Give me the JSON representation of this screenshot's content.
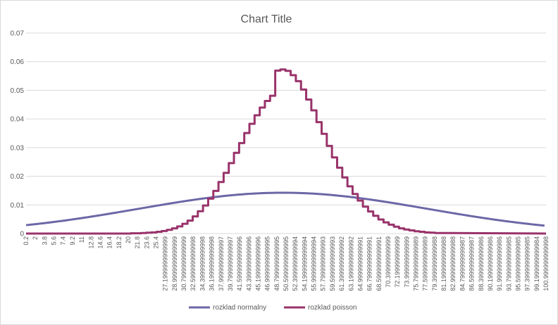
{
  "chart_data": {
    "type": "line",
    "title": "Chart Title",
    "xlabel": "",
    "ylabel": "",
    "ylim": [
      0,
      0.07
    ],
    "y_ticks": [
      "0",
      "0.01",
      "0.02",
      "0.03",
      "0.04",
      "0.05",
      "0.06",
      "0.07"
    ],
    "x_range": [
      0.2,
      101.0
    ],
    "x_step": 0.1,
    "x_tick_labels": [
      "0.2",
      "2",
      "3.8",
      "5.6",
      "7.4",
      "9.2",
      "11",
      "12.8",
      "14.6",
      "16.4",
      "18.2",
      "20",
      "21.8",
      "23.6",
      "25.4",
      "27.1999999999999",
      "28.9999999999999",
      "30.7999999999999",
      "32.5999999999998",
      "34.3999999999998",
      "36.1999999999998",
      "37.9999999999997",
      "39.7999999999997",
      "41.5999999999996",
      "43.3999999999996",
      "45.1999999999996",
      "46.9999999999995",
      "48.7999999999995",
      "50.5999999999995",
      "52.3999999999994",
      "54.1999999999994",
      "55.9999999999994",
      "57.7999999999993",
      "59.5999999999993",
      "61.3999999999992",
      "63.1999999999992",
      "64.9999999999991",
      "66.7999999999991",
      "68.5999999999991",
      "70.399999999999",
      "72.199999999999",
      "73.999999999999",
      "75.7999999999989",
      "77.5999999999989",
      "79.3999999999988",
      "81.1999999999988",
      "82.9999999999988",
      "84.7999999999987",
      "86.5999999999987",
      "88.3999999999986",
      "90.1999999999986",
      "91.9999999999986",
      "93.7999999999985",
      "95.5999999999985",
      "97.3999999999985",
      "99.1999999999984",
      "100.999999999998"
    ],
    "grid": true,
    "legend_position": "bottom",
    "series": [
      {
        "name": "rozklad normalny",
        "color": "#6b67a6",
        "kind": "normal",
        "mean": 50,
        "sd": 28
      },
      {
        "name": "rozklad poisson",
        "color": "#99336a",
        "kind": "poisson-step",
        "lambda": 49,
        "x": [
          20,
          21,
          22,
          23,
          24,
          25,
          26,
          27,
          28,
          29,
          30,
          31,
          32,
          33,
          34,
          35,
          36,
          37,
          38,
          39,
          40,
          41,
          42,
          43,
          44,
          45,
          46,
          47,
          48,
          49,
          50,
          51,
          52,
          53,
          54,
          55,
          56,
          57,
          58,
          59,
          60,
          61,
          62,
          63,
          64,
          65,
          66,
          67,
          68,
          69,
          70,
          71,
          72,
          73,
          74,
          75,
          76,
          77,
          78,
          79,
          80
        ],
        "values": [
          0.0,
          0.0001,
          0.0001,
          0.0002,
          0.0003,
          0.0004,
          0.0006,
          0.0009,
          0.0013,
          0.0018,
          0.0025,
          0.0034,
          0.0045,
          0.006,
          0.0078,
          0.0098,
          0.0122,
          0.0149,
          0.018,
          0.0212,
          0.0246,
          0.0282,
          0.0316,
          0.0351,
          0.0383,
          0.0413,
          0.044,
          0.0463,
          0.0481,
          0.0569,
          0.0573,
          0.0568,
          0.0553,
          0.0532,
          0.0503,
          0.0468,
          0.043,
          0.0389,
          0.0348,
          0.0306,
          0.0266,
          0.023,
          0.0196,
          0.0165,
          0.0138,
          0.0115,
          0.0094,
          0.0077,
          0.0062,
          0.0049,
          0.0039,
          0.0031,
          0.0024,
          0.0018,
          0.0014,
          0.0011,
          0.0008,
          0.0006,
          0.0004,
          0.0003,
          0.0002
        ]
      }
    ]
  }
}
